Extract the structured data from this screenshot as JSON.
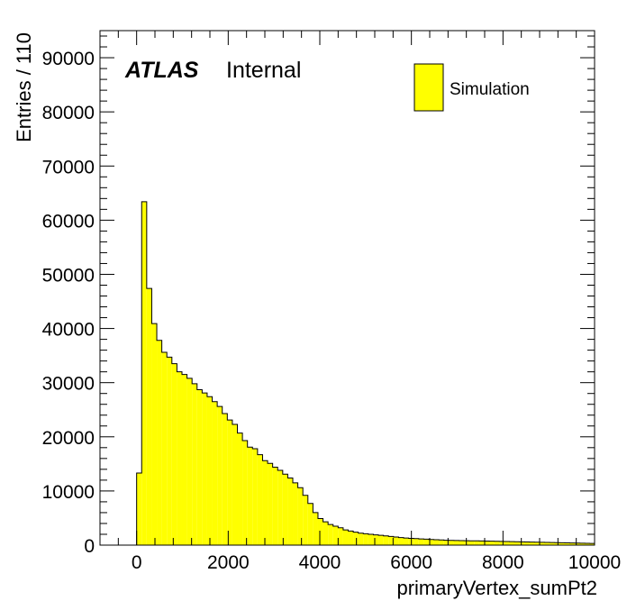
{
  "chart_data": {
    "type": "bar",
    "style": "histogram",
    "xlabel": "primaryVertex_sumPt2",
    "ylabel": "Entries / 110",
    "xlim": [
      -800,
      10000
    ],
    "ylim": [
      0,
      95000
    ],
    "bin_width": 110,
    "x_ticks": [
      0,
      2000,
      4000,
      6000,
      8000,
      10000
    ],
    "y_ticks": [
      0,
      10000,
      20000,
      30000,
      40000,
      50000,
      60000,
      70000,
      80000,
      90000
    ],
    "atlas_label": "ATLAS",
    "atlas_status": "Internal",
    "legend_position": "top-right",
    "grid": false,
    "series": [
      {
        "name": "Simulation",
        "color": "#ffff00",
        "edge_color": "#000000",
        "bin_low_edges": [
          0,
          110,
          220,
          330,
          440,
          550,
          660,
          770,
          880,
          990,
          1100,
          1210,
          1320,
          1430,
          1540,
          1650,
          1760,
          1870,
          1980,
          2090,
          2200,
          2310,
          2420,
          2530,
          2640,
          2750,
          2860,
          2970,
          3080,
          3190,
          3300,
          3410,
          3520,
          3630,
          3740,
          3850,
          3960,
          4070,
          4180,
          4290,
          4400,
          4510,
          4620,
          4730,
          4840,
          4950,
          5060,
          5170,
          5280,
          5390,
          5500,
          5610,
          5720,
          5830,
          5940,
          6050,
          6160,
          6270,
          6380,
          6490,
          6600,
          6710,
          6820,
          6930,
          7040,
          7150,
          7260,
          7370,
          7480,
          7590,
          7700,
          7810,
          7920,
          8030,
          8140,
          8250,
          8360,
          8470,
          8580,
          8690,
          8800,
          8910,
          9020,
          9130,
          9240,
          9350,
          9460,
          9570,
          9680,
          9790,
          9890
        ],
        "values": [
          13300,
          63400,
          47400,
          40900,
          37800,
          35600,
          34700,
          33500,
          32000,
          31500,
          30800,
          29800,
          28700,
          28100,
          27400,
          26500,
          25600,
          24300,
          23100,
          22300,
          20700,
          19300,
          18100,
          17800,
          16700,
          15600,
          15100,
          14400,
          13800,
          13100,
          12400,
          11500,
          10600,
          9200,
          7700,
          6000,
          4900,
          4300,
          3800,
          3500,
          3200,
          2800,
          2600,
          2400,
          2200,
          2100,
          2000,
          1900,
          1800,
          1700,
          1600,
          1500,
          1400,
          1300,
          1250,
          1200,
          1150,
          1100,
          1050,
          1000,
          950,
          900,
          880,
          860,
          840,
          820,
          800,
          780,
          760,
          740,
          720,
          700,
          680,
          660,
          640,
          620,
          600,
          580,
          560,
          540,
          520,
          500,
          480,
          460,
          440,
          420,
          400,
          380,
          360,
          340,
          320
        ]
      }
    ]
  }
}
